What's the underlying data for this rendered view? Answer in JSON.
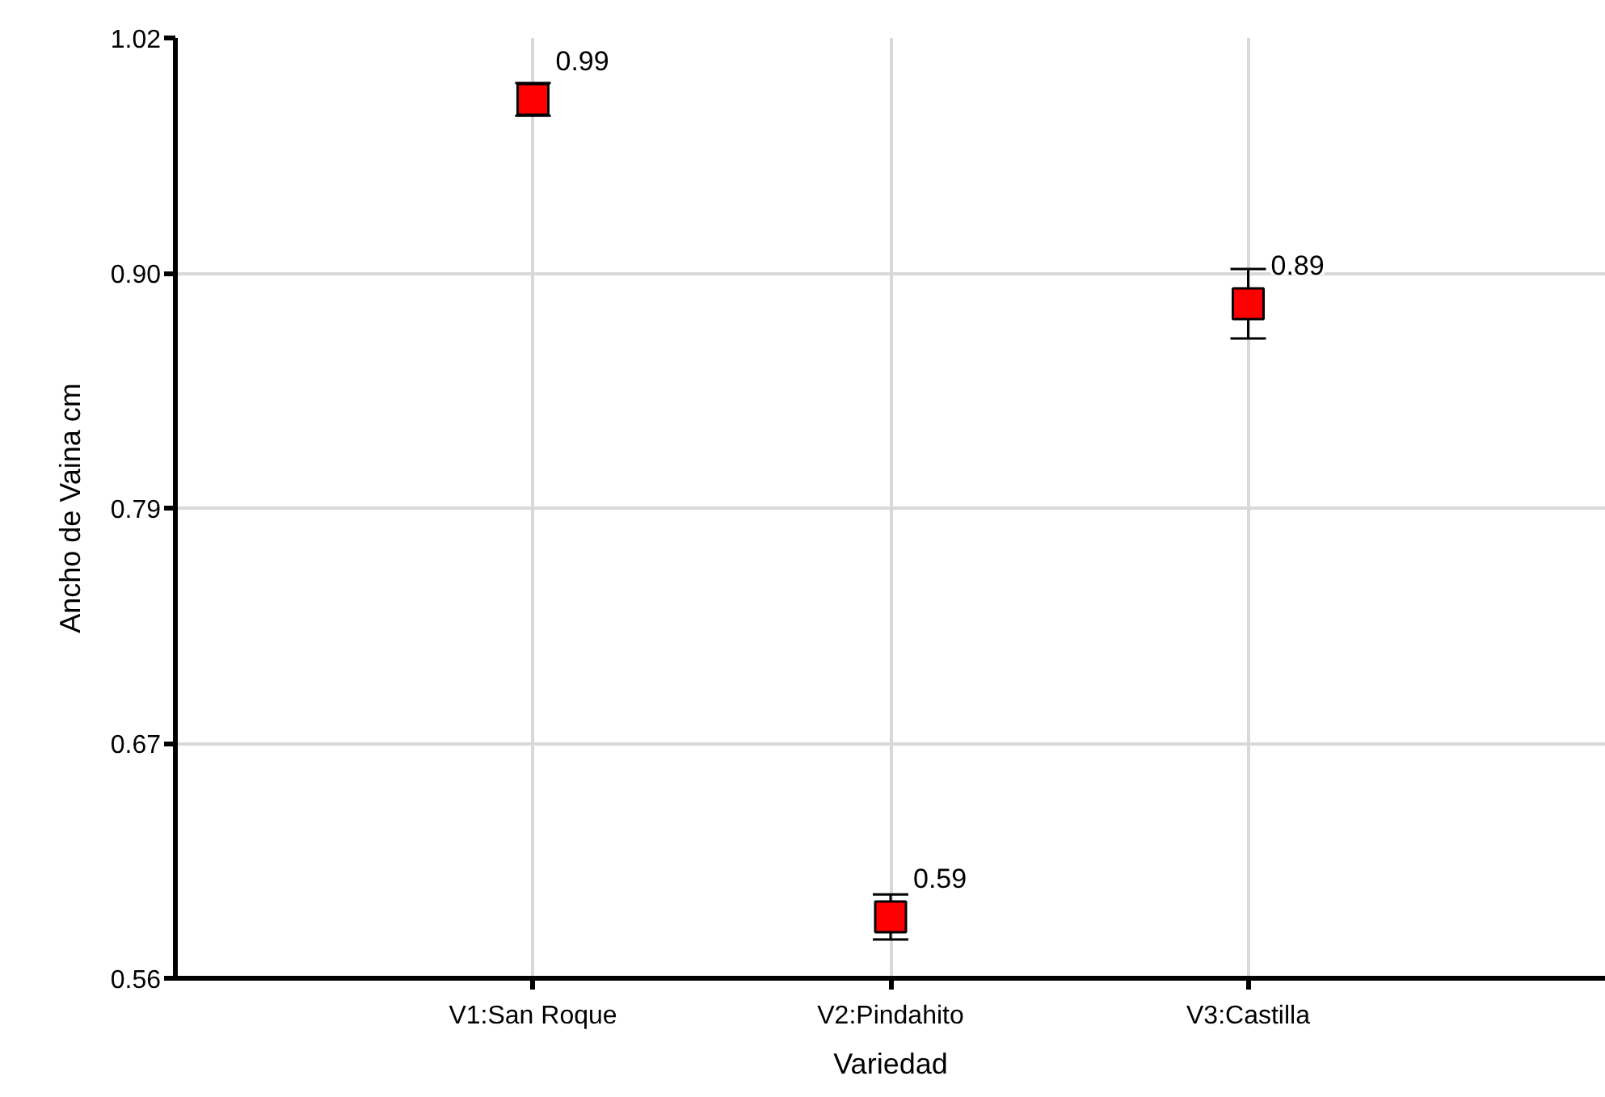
{
  "chart_data": {
    "type": "scatter",
    "xlabel": "Variedad",
    "ylabel": "Ancho de Vaina cm",
    "categories": [
      "V1:San Roque",
      "V2:Pindahito",
      "V3:Castilla"
    ],
    "values": [
      0.99,
      0.59,
      0.89
    ],
    "errors": [
      0.008,
      0.011,
      0.017
    ],
    "color": "#ff0000",
    "marker": "square",
    "data_labels": true,
    "ylim": [
      0.56,
      1.02
    ],
    "yticks": [
      0.56,
      {
        "value": 0.675,
        "label": "0.67"
      },
      0.79,
      {
        "value": 0.905,
        "label": "0.90"
      },
      1.02
    ],
    "grid": true
  }
}
